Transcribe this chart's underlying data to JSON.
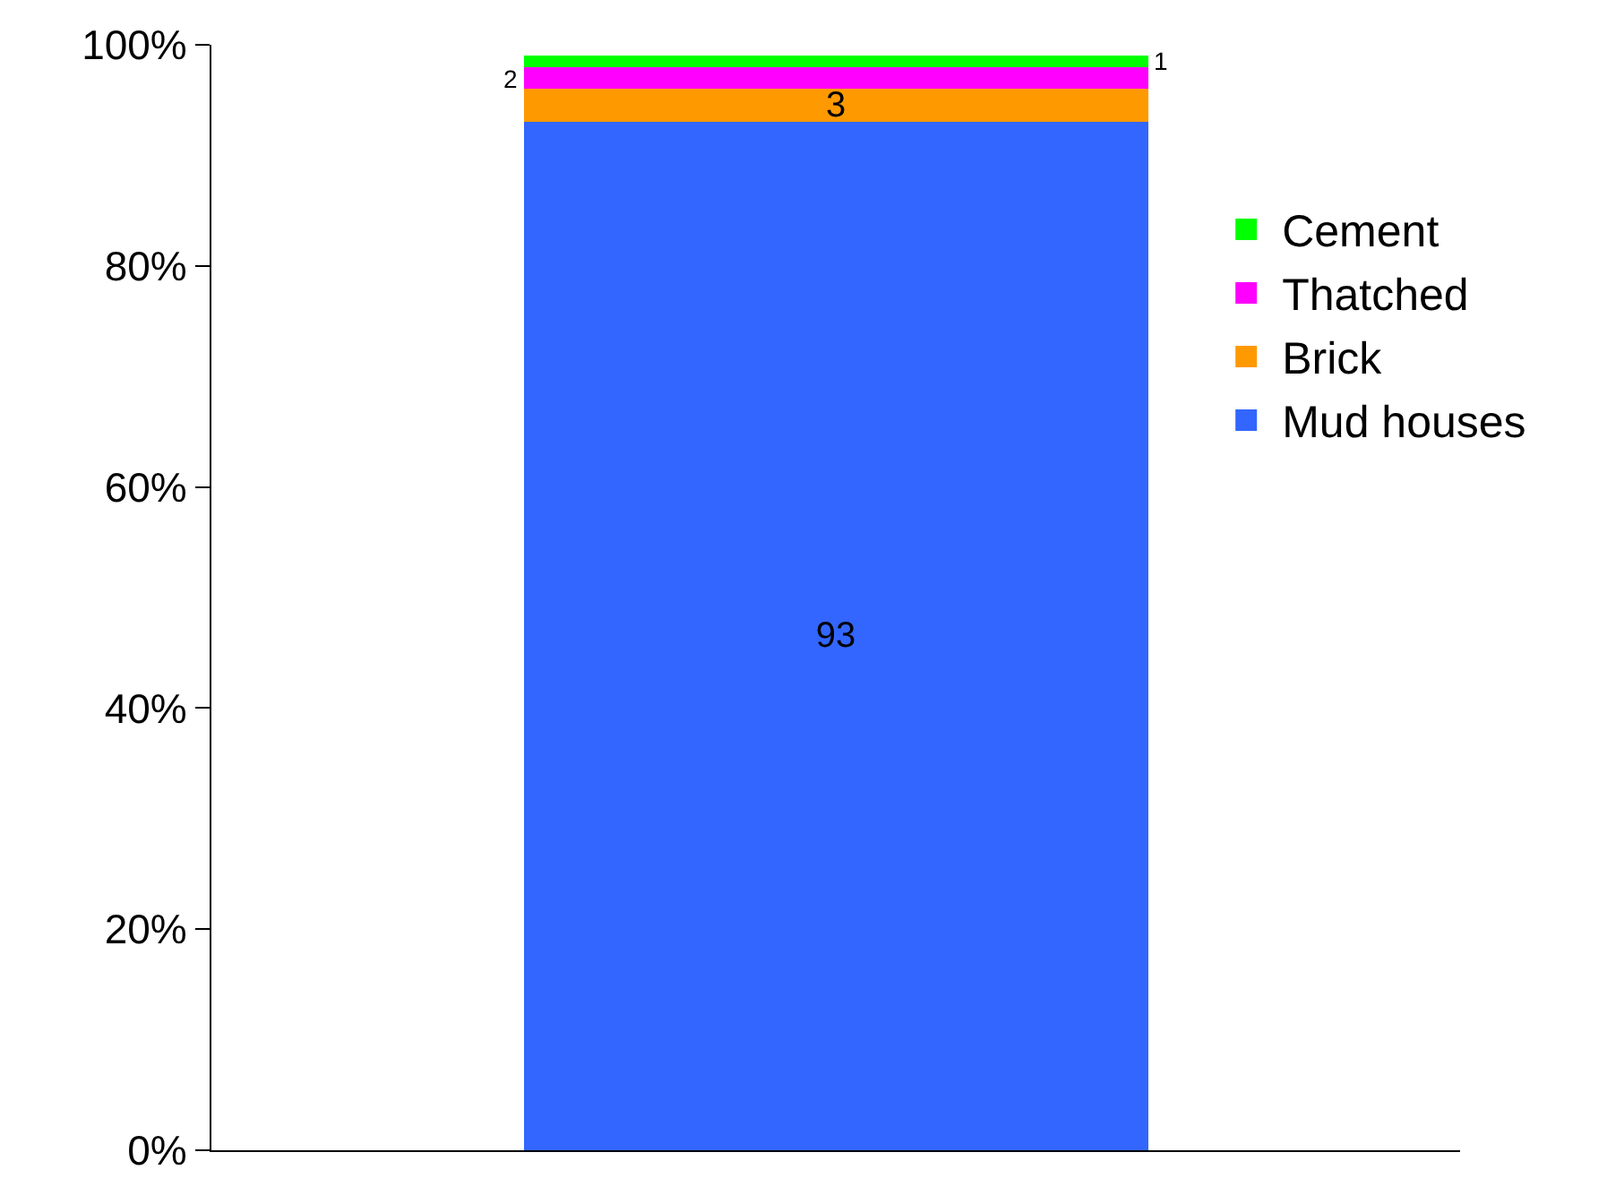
{
  "chart_data": {
    "type": "bar",
    "stacked": true,
    "categories": [
      null
    ],
    "series": [
      {
        "name": "Mud houses",
        "color": "#3366ff",
        "values": [
          93
        ]
      },
      {
        "name": "Brick",
        "color": "#ff9900",
        "values": [
          3
        ]
      },
      {
        "name": "Thatched",
        "color": "#ff00ff",
        "values": [
          2
        ]
      },
      {
        "name": "Cement",
        "color": "#00ff00",
        "values": [
          1
        ]
      }
    ],
    "data_labels": true,
    "ylim": [
      0,
      100
    ],
    "yticks": [
      {
        "value": 0,
        "label": "0%"
      },
      {
        "value": 20,
        "label": "20%"
      },
      {
        "value": 40,
        "label": "40%"
      },
      {
        "value": 60,
        "label": "60%"
      },
      {
        "value": 80,
        "label": "80%"
      },
      {
        "value": 100,
        "label": "100%"
      }
    ],
    "grid": false,
    "legend": "right"
  }
}
